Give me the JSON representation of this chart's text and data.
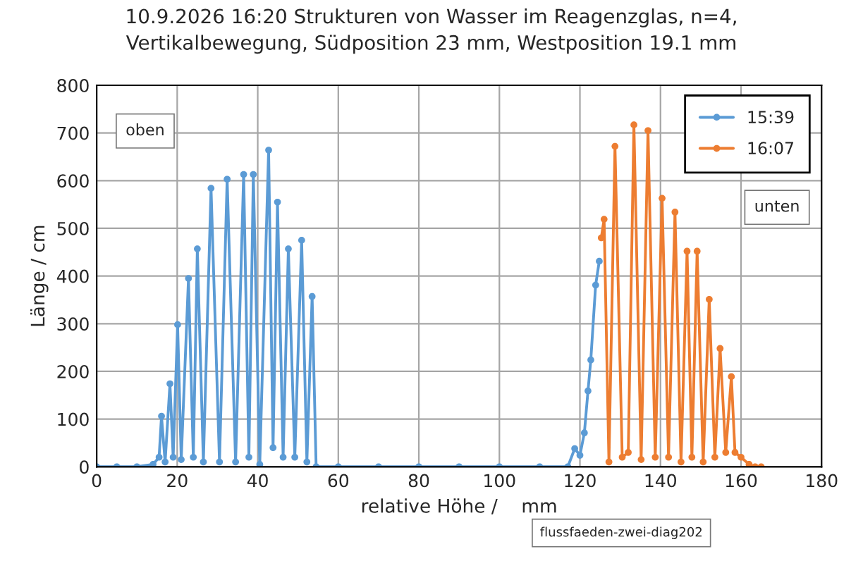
{
  "chart_data": {
    "type": "line",
    "title": "10.9.2026 16:20 Strukturen von Wasser im Reagenzglas, n=4,\nVertikalbewegung, Südposition 23 mm, Westposition 19.1 mm",
    "xlabel": "relative Höhe /    mm",
    "ylabel": "Länge / cm",
    "series": [
      {
        "name": "15:39",
        "color": "#5b9bd5",
        "x": [
          0,
          5,
          10,
          14,
          15.5,
          16.1,
          17,
          18.2,
          19,
          20.1,
          21,
          22.8,
          24,
          25,
          26.5,
          28.4,
          30.5,
          32.4,
          34.5,
          36.5,
          37.8,
          38.9,
          40.5,
          42.7,
          43.8,
          44.9,
          46.3,
          47.6,
          49.2,
          50.9,
          52.2,
          53.5,
          54.5,
          60,
          70,
          80,
          90,
          100,
          110,
          117,
          118.7,
          120,
          121.1,
          122,
          122.7,
          123.9,
          124.8
        ],
        "values": [
          0,
          0,
          0,
          5,
          20,
          106,
          10,
          174,
          20,
          298,
          15,
          395,
          20,
          457,
          10,
          584,
          10,
          603,
          10,
          613,
          20,
          613,
          5,
          664,
          40,
          555,
          20,
          457,
          20,
          475,
          10,
          357,
          0,
          0,
          0,
          0,
          0,
          0,
          0,
          0,
          38,
          24,
          71,
          159,
          224,
          381,
          431
        ]
      },
      {
        "name": "16:07",
        "color": "#ed7d31",
        "x": [
          125.3,
          126.0,
          127.2,
          128.7,
          130.5,
          132,
          133.4,
          135.2,
          136.9,
          138.7,
          140.4,
          142,
          143.6,
          145.1,
          146.6,
          147.8,
          149.1,
          150.6,
          152.1,
          153.5,
          154.8,
          156.2,
          157.6,
          158.5,
          160,
          162,
          163.5,
          165
        ],
        "values": [
          480,
          519,
          10,
          672,
          20,
          30,
          717,
          15,
          705,
          20,
          563,
          20,
          534,
          10,
          452,
          20,
          452,
          10,
          351,
          20,
          248,
          30,
          189,
          30,
          20,
          5,
          0,
          0
        ]
      }
    ],
    "xlim": [
      0,
      180
    ],
    "xticks": [
      0,
      20,
      40,
      60,
      80,
      100,
      120,
      140,
      160,
      180
    ],
    "ylim": [
      0,
      800
    ],
    "yticks": [
      0,
      100,
      200,
      300,
      400,
      500,
      600,
      700,
      800
    ],
    "grid": true,
    "legend": "top right",
    "marker": "circle",
    "line_style": "solid",
    "annotations": [
      "oben",
      "unten",
      "flussfaeden-zwei-diag202"
    ]
  }
}
